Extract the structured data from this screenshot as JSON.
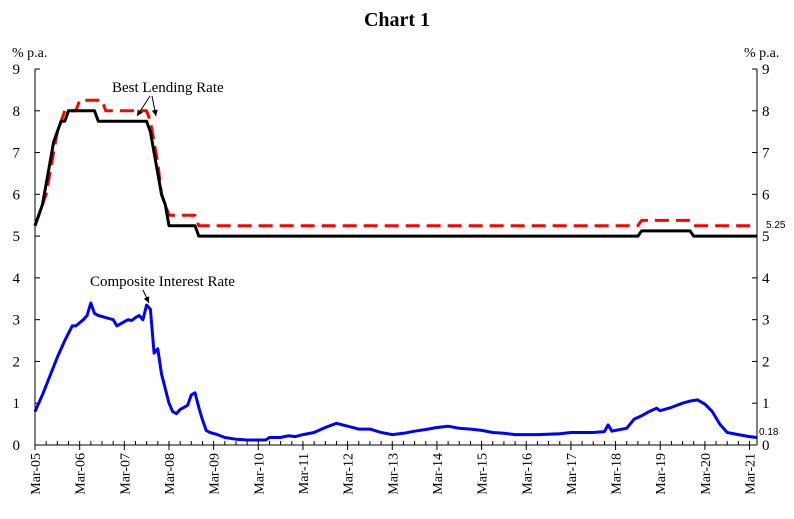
{
  "chart_data": {
    "type": "line",
    "title": "Chart 1",
    "y_unit_left": "% p.a.",
    "y_unit_right": "% p.a.",
    "ylim": [
      0,
      9
    ],
    "yticks": [
      "0",
      "1",
      "2",
      "3",
      "4",
      "5",
      "6",
      "7",
      "8",
      "9"
    ],
    "x_start": "2005-03",
    "x_end": "2021-05",
    "xticks": [
      {
        "label": "Mar-05",
        "date": "2005-03"
      },
      {
        "label": "Mar-06",
        "date": "2006-03"
      },
      {
        "label": "Mar-07",
        "date": "2007-03"
      },
      {
        "label": "Mar-08",
        "date": "2008-03"
      },
      {
        "label": "Mar-09",
        "date": "2009-03"
      },
      {
        "label": "Mar-10",
        "date": "2010-03"
      },
      {
        "label": "Mar-11",
        "date": "2011-03"
      },
      {
        "label": "Mar-12",
        "date": "2012-03"
      },
      {
        "label": "Mar-13",
        "date": "2013-03"
      },
      {
        "label": "Mar-14",
        "date": "2014-03"
      },
      {
        "label": "Mar-15",
        "date": "2015-03"
      },
      {
        "label": "Mar-16",
        "date": "2016-03"
      },
      {
        "label": "Mar-17",
        "date": "2017-03"
      },
      {
        "label": "Mar-18",
        "date": "2018-03"
      },
      {
        "label": "Mar-19",
        "date": "2019-03"
      },
      {
        "label": "Mar-20",
        "date": "2020-03"
      },
      {
        "label": "Mar-21",
        "date": "2021-03"
      }
    ],
    "grid": false,
    "legend": "none",
    "series": [
      {
        "color": "#ff0000",
        "style": "dashed",
        "step": true,
        "points": [
          [
            "2005-03",
            5.25
          ],
          [
            "2005-04",
            5.5
          ],
          [
            "2005-05",
            5.75
          ],
          [
            "2005-06",
            6.0
          ],
          [
            "2005-07",
            6.5
          ],
          [
            "2005-08",
            7.0
          ],
          [
            "2005-09",
            7.5
          ],
          [
            "2005-10",
            7.75
          ],
          [
            "2005-11",
            8.0
          ],
          [
            "2005-12",
            8.0
          ],
          [
            "2006-01",
            8.0
          ],
          [
            "2006-02",
            8.0
          ],
          [
            "2006-03",
            8.25
          ],
          [
            "2006-09",
            8.25
          ],
          [
            "2006-10",
            8.0
          ],
          [
            "2007-09",
            8.0
          ],
          [
            "2007-10",
            7.75
          ],
          [
            "2007-11",
            7.25
          ],
          [
            "2007-12",
            6.75
          ],
          [
            "2008-01",
            6.0
          ],
          [
            "2008-02",
            5.75
          ],
          [
            "2008-03",
            5.5
          ],
          [
            "2008-10",
            5.5
          ],
          [
            "2008-11",
            5.25
          ],
          [
            "2018-09",
            5.25
          ],
          [
            "2018-10",
            5.375
          ],
          [
            "2019-08",
            5.375
          ],
          [
            "2019-11",
            5.375
          ],
          [
            "2019-12",
            5.25
          ],
          [
            "2021-05",
            5.25
          ]
        ]
      },
      {
        "color": "#000000",
        "style": "solid",
        "step": true,
        "points": [
          [
            "2005-03",
            5.25
          ],
          [
            "2005-04",
            5.5
          ],
          [
            "2005-05",
            5.75
          ],
          [
            "2005-06",
            6.25
          ],
          [
            "2005-07",
            6.75
          ],
          [
            "2005-08",
            7.25
          ],
          [
            "2005-09",
            7.5
          ],
          [
            "2005-10",
            7.75
          ],
          [
            "2005-11",
            7.75
          ],
          [
            "2005-12",
            8.0
          ],
          [
            "2006-07",
            8.0
          ],
          [
            "2006-08",
            7.75
          ],
          [
            "2007-09",
            7.75
          ],
          [
            "2007-10",
            7.5
          ],
          [
            "2007-11",
            7.0
          ],
          [
            "2007-12",
            6.5
          ],
          [
            "2008-01",
            6.0
          ],
          [
            "2008-02",
            5.75
          ],
          [
            "2008-03",
            5.25
          ],
          [
            "2008-10",
            5.25
          ],
          [
            "2008-11",
            5.0
          ],
          [
            "2018-09",
            5.0
          ],
          [
            "2018-10",
            5.125
          ],
          [
            "2019-11",
            5.125
          ],
          [
            "2019-12",
            5.0
          ],
          [
            "2021-05",
            5.0
          ]
        ]
      },
      {
        "color": "#0000ff",
        "style": "solid",
        "step": false,
        "points": [
          [
            "2005-03",
            0.8
          ],
          [
            "2005-05",
            1.2
          ],
          [
            "2005-07",
            1.65
          ],
          [
            "2005-09",
            2.1
          ],
          [
            "2005-11",
            2.5
          ],
          [
            "2006-01",
            2.85
          ],
          [
            "2006-02",
            2.85
          ],
          [
            "2006-04",
            3.0
          ],
          [
            "2006-05",
            3.1
          ],
          [
            "2006-06",
            3.4
          ],
          [
            "2006-07",
            3.15
          ],
          [
            "2006-08",
            3.1
          ],
          [
            "2006-10",
            3.05
          ],
          [
            "2006-12",
            3.0
          ],
          [
            "2007-01",
            2.85
          ],
          [
            "2007-02",
            2.9
          ],
          [
            "2007-04",
            3.0
          ],
          [
            "2007-05",
            2.98
          ],
          [
            "2007-06",
            3.05
          ],
          [
            "2007-07",
            3.1
          ],
          [
            "2007-08",
            3.0
          ],
          [
            "2007-09",
            3.35
          ],
          [
            "2007-10",
            3.25
          ],
          [
            "2007-11",
            2.2
          ],
          [
            "2007-12",
            2.3
          ],
          [
            "2008-01",
            1.7
          ],
          [
            "2008-02",
            1.35
          ],
          [
            "2008-03",
            1.0
          ],
          [
            "2008-04",
            0.8
          ],
          [
            "2008-05",
            0.75
          ],
          [
            "2008-06",
            0.85
          ],
          [
            "2008-07",
            0.9
          ],
          [
            "2008-08",
            0.95
          ],
          [
            "2008-09",
            1.2
          ],
          [
            "2008-10",
            1.25
          ],
          [
            "2008-11",
            0.9
          ],
          [
            "2008-12",
            0.6
          ],
          [
            "2009-01",
            0.35
          ],
          [
            "2009-02",
            0.3
          ],
          [
            "2009-04",
            0.25
          ],
          [
            "2009-06",
            0.18
          ],
          [
            "2009-09",
            0.14
          ],
          [
            "2009-12",
            0.12
          ],
          [
            "2010-03",
            0.12
          ],
          [
            "2010-05",
            0.12
          ],
          [
            "2010-06",
            0.18
          ],
          [
            "2010-09",
            0.18
          ],
          [
            "2010-11",
            0.22
          ],
          [
            "2011-01",
            0.2
          ],
          [
            "2011-03",
            0.25
          ],
          [
            "2011-06",
            0.3
          ],
          [
            "2011-09",
            0.42
          ],
          [
            "2011-12",
            0.52
          ],
          [
            "2012-03",
            0.45
          ],
          [
            "2012-06",
            0.38
          ],
          [
            "2012-09",
            0.38
          ],
          [
            "2012-12",
            0.3
          ],
          [
            "2013-03",
            0.25
          ],
          [
            "2013-06",
            0.28
          ],
          [
            "2013-09",
            0.33
          ],
          [
            "2013-12",
            0.37
          ],
          [
            "2014-03",
            0.42
          ],
          [
            "2014-06",
            0.45
          ],
          [
            "2014-09",
            0.4
          ],
          [
            "2014-12",
            0.38
          ],
          [
            "2015-03",
            0.35
          ],
          [
            "2015-06",
            0.3
          ],
          [
            "2015-09",
            0.28
          ],
          [
            "2015-12",
            0.25
          ],
          [
            "2016-06",
            0.25
          ],
          [
            "2016-12",
            0.27
          ],
          [
            "2017-03",
            0.3
          ],
          [
            "2017-09",
            0.3
          ],
          [
            "2017-12",
            0.32
          ],
          [
            "2018-01",
            0.48
          ],
          [
            "2018-02",
            0.33
          ],
          [
            "2018-03",
            0.35
          ],
          [
            "2018-06",
            0.4
          ],
          [
            "2018-08",
            0.62
          ],
          [
            "2018-10",
            0.7
          ],
          [
            "2018-12",
            0.8
          ],
          [
            "2019-02",
            0.88
          ],
          [
            "2019-03",
            0.82
          ],
          [
            "2019-06",
            0.9
          ],
          [
            "2019-09",
            1.0
          ],
          [
            "2019-11",
            1.05
          ],
          [
            "2020-01",
            1.08
          ],
          [
            "2020-03",
            0.98
          ],
          [
            "2020-05",
            0.8
          ],
          [
            "2020-07",
            0.5
          ],
          [
            "2020-09",
            0.3
          ],
          [
            "2020-12",
            0.25
          ],
          [
            "2021-03",
            0.2
          ],
          [
            "2021-05",
            0.18
          ]
        ]
      }
    ],
    "annotations": [
      {
        "text": "Best Lending Rate",
        "kind": "label"
      },
      {
        "text": "Composite Interest Rate",
        "kind": "label"
      }
    ],
    "end_labels": [
      {
        "text": "5.25",
        "value": 5.25
      },
      {
        "text": "0.18",
        "value": 0.18
      }
    ]
  }
}
